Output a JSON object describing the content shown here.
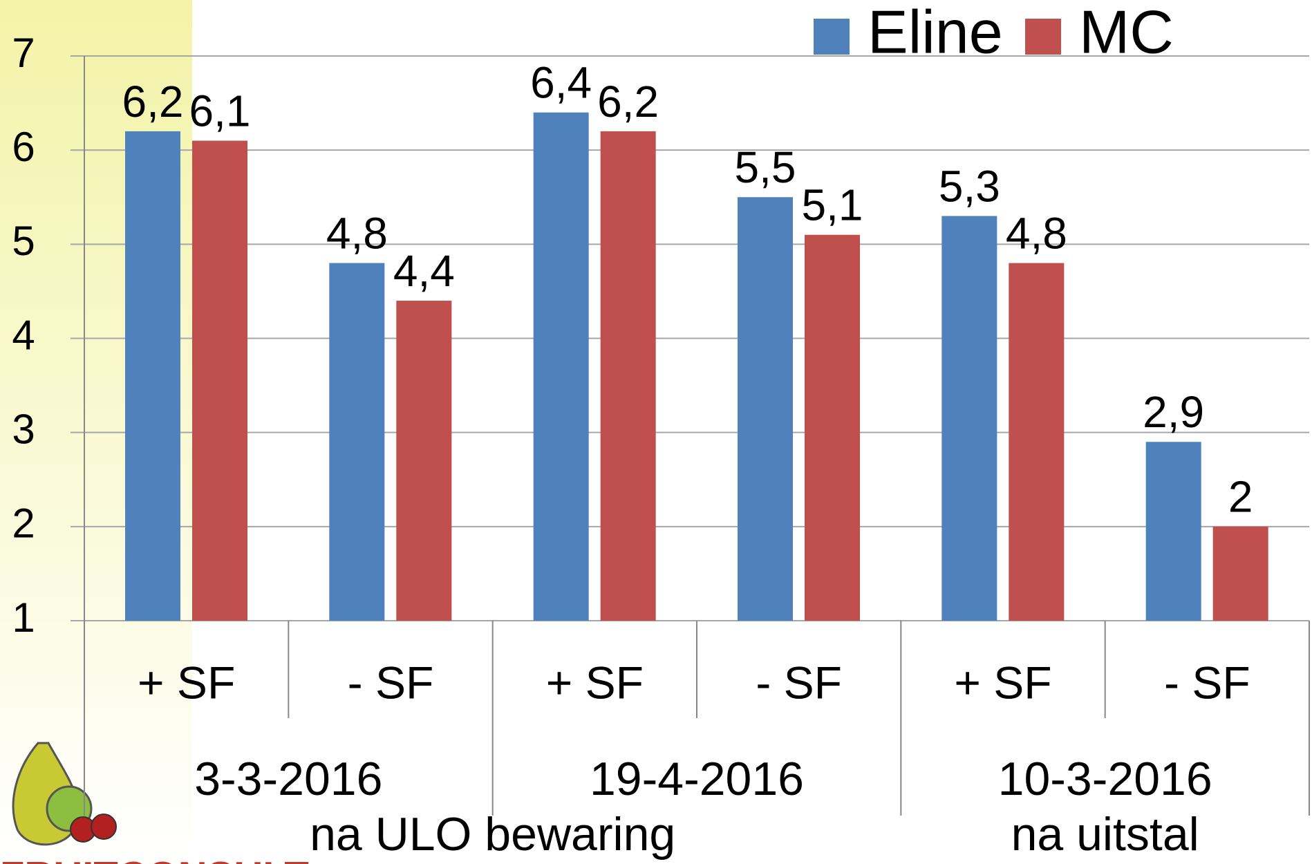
{
  "chart_data": {
    "type": "bar",
    "categories": [
      "+ SF",
      "- SF",
      "+ SF",
      "- SF",
      "+ SF",
      "- SF"
    ],
    "groups": [
      "3-3-2016",
      "19-4-2016",
      "10-3-2016"
    ],
    "annotations": [
      "na ULO bewaring",
      "na uitstal"
    ],
    "series": [
      {
        "name": "Eline",
        "color": "#4f81bd",
        "values": [
          6.2,
          4.8,
          6.4,
          5.5,
          5.3,
          2.9
        ],
        "value_labels": [
          "6,2",
          "4,8",
          "6,4",
          "5,5",
          "5,3",
          "2,9"
        ]
      },
      {
        "name": "MC",
        "color": "#c0504d",
        "values": [
          6.1,
          4.4,
          6.2,
          5.1,
          4.8,
          2
        ],
        "value_labels": [
          "6,1",
          "4,4",
          "6,2",
          "5,1",
          "4,8",
          "2"
        ]
      }
    ],
    "ylim": [
      1,
      7
    ],
    "yticks": [
      1,
      2,
      3,
      4,
      5,
      6,
      7
    ],
    "grid": true,
    "legend": "top-right"
  },
  "logo": "FRUITCONSULT"
}
